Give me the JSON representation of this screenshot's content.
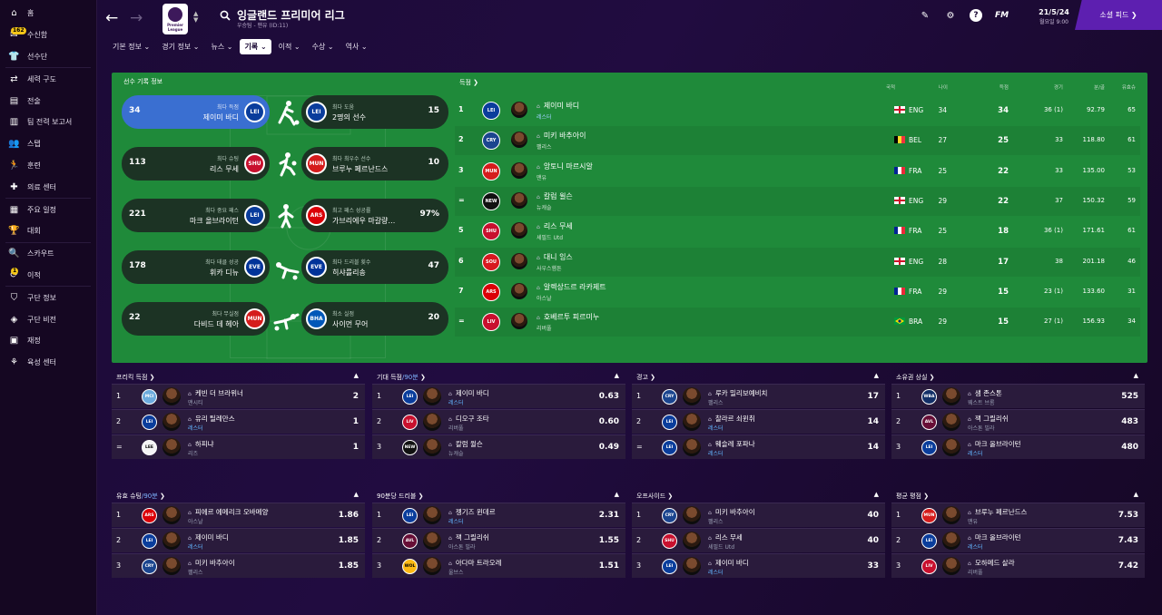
{
  "sidebar": {
    "items": [
      {
        "label": "홈",
        "icon": "home-icon",
        "glyph": "⌂"
      },
      {
        "label": "수신함",
        "icon": "inbox-icon",
        "glyph": "✉",
        "badge": "162"
      },
      {
        "label": "선수단",
        "icon": "shirt-icon",
        "glyph": "👕"
      },
      {
        "label": "세력 구도",
        "icon": "dynamics-icon",
        "glyph": "⇄"
      },
      {
        "label": "전술",
        "icon": "tactics-icon",
        "glyph": "▤"
      },
      {
        "label": "팀 전력 보고서",
        "icon": "report-icon",
        "glyph": "▥"
      },
      {
        "label": "스탭",
        "icon": "staff-icon",
        "glyph": "👥"
      },
      {
        "label": "훈련",
        "icon": "training-icon",
        "glyph": "🏃"
      },
      {
        "label": "의료 센터",
        "icon": "medical-icon",
        "glyph": "✚"
      },
      {
        "label": "주요 일정",
        "icon": "calendar-icon",
        "glyph": "▦"
      },
      {
        "label": "대회",
        "icon": "trophy-icon",
        "glyph": "🏆"
      },
      {
        "label": "스카우트",
        "icon": "scout-icon",
        "glyph": "🔍"
      },
      {
        "label": "이적",
        "icon": "transfer-icon",
        "glyph": "⟳",
        "badge": "1"
      },
      {
        "label": "구단 정보",
        "icon": "club-info-icon",
        "glyph": "⛉"
      },
      {
        "label": "구단 비전",
        "icon": "vision-icon",
        "glyph": "◈"
      },
      {
        "label": "재정",
        "icon": "finance-icon",
        "glyph": "▣"
      },
      {
        "label": "육성 센터",
        "icon": "development-icon",
        "glyph": "⚘"
      }
    ]
  },
  "header": {
    "title": "잉글랜드 프리미어 리그",
    "subtitle": "우승팀 - 맨유 (ID:11)",
    "logo_text": "Premier League",
    "date": "21/5/24",
    "time": "월요일 9:00",
    "fm": "FM",
    "social_label": "소셜 피드 ❯",
    "tabs": [
      {
        "label": "기본 정보 ⌄",
        "active": false
      },
      {
        "label": "경기 정보 ⌄",
        "active": false
      },
      {
        "label": "뉴스 ⌄",
        "active": false
      },
      {
        "label": "기록 ⌄",
        "active": true
      },
      {
        "label": "이적 ⌄",
        "active": false
      },
      {
        "label": "수상 ⌄",
        "active": false
      },
      {
        "label": "역사 ⌄",
        "active": false
      }
    ]
  },
  "records": {
    "title": "선수 기록 정보",
    "rows": [
      {
        "left": {
          "value": "34",
          "label": "최다 득점",
          "name": "제이미 바디",
          "club": "LEI",
          "color": "#0a3d9c"
        },
        "right": {
          "value": "15",
          "label": "최다 도움",
          "name": "2명의 선수",
          "club": "LEI",
          "color": "#0a3d9c"
        }
      },
      {
        "left": {
          "value": "113",
          "label": "최다 슈팅",
          "name": "리스 무세",
          "club": "SHU",
          "color": "#c8102e"
        },
        "right": {
          "value": "10",
          "label": "최다 최우수 선수",
          "name": "브루누 페르난드스",
          "club": "MUN",
          "color": "#d51c1c"
        }
      },
      {
        "left": {
          "value": "221",
          "label": "최다 중요 패스",
          "name": "마크 올브라이턴",
          "club": "LEI",
          "color": "#0a3d9c"
        },
        "right": {
          "value": "97%",
          "label": "최고 패스 성공률",
          "name": "가브리에우 마갈량…",
          "club": "ARS",
          "color": "#db0007"
        }
      },
      {
        "left": {
          "value": "178",
          "label": "최다 태클 성공",
          "name": "휘카 디뉴",
          "club": "EVE",
          "color": "#003399"
        },
        "right": {
          "value": "47",
          "label": "최다 드리블 횟수",
          "name": "히샤를리송",
          "club": "EVE",
          "color": "#003399"
        }
      },
      {
        "left": {
          "value": "22",
          "label": "최다 무실점",
          "name": "다비드 데 헤아",
          "club": "MUN",
          "color": "#d51c1c"
        },
        "right": {
          "value": "20",
          "label": "최소 실점",
          "name": "사이먼 무어",
          "club": "BHA",
          "color": "#0057b8"
        }
      }
    ]
  },
  "scorers": {
    "title": "득점 ❯",
    "headers": {
      "nat": "국적",
      "age": "나이",
      "goals": "득점",
      "apps": "경기",
      "mpg": "분/골",
      "eff": "유효슈"
    },
    "rows": [
      {
        "rank": "1",
        "name": "제이미 바디",
        "club": "레스터",
        "club_hl": true,
        "crest": "LEI",
        "crest_color": "#0a3d9c",
        "nat": "ENG",
        "flag": "eng",
        "age": "34",
        "goals": "34",
        "apps": "36 (1)",
        "mpg": "92.79",
        "eff": "65"
      },
      {
        "rank": "2",
        "name": "미키 바추아이",
        "club": "팰리스",
        "club_hl": false,
        "crest": "CRY",
        "crest_color": "#1b458f",
        "nat": "BEL",
        "flag": "bel",
        "age": "27",
        "goals": "25",
        "apps": "33",
        "mpg": "118.80",
        "eff": "61"
      },
      {
        "rank": "3",
        "name": "앙토니 마르시알",
        "club": "맨유",
        "club_hl": false,
        "crest": "MUN",
        "crest_color": "#d51c1c",
        "nat": "FRA",
        "flag": "fra",
        "age": "25",
        "goals": "22",
        "apps": "33",
        "mpg": "135.00",
        "eff": "53"
      },
      {
        "rank": "=",
        "name": "칼럼 윌슨",
        "club": "뉴캐슬",
        "club_hl": false,
        "crest": "NEW",
        "crest_color": "#111111",
        "nat": "ENG",
        "flag": "eng",
        "age": "29",
        "goals": "22",
        "apps": "37",
        "mpg": "150.32",
        "eff": "59"
      },
      {
        "rank": "5",
        "name": "리스 무세",
        "club": "셰필드 Utd",
        "club_hl": false,
        "crest": "SHU",
        "crest_color": "#c8102e",
        "nat": "FRA",
        "flag": "fra",
        "age": "25",
        "goals": "18",
        "apps": "36 (1)",
        "mpg": "171.61",
        "eff": "61"
      },
      {
        "rank": "6",
        "name": "대니 잉스",
        "club": "사우스햄튼",
        "club_hl": false,
        "crest": "SOU",
        "crest_color": "#d71920",
        "nat": "ENG",
        "flag": "eng",
        "age": "28",
        "goals": "17",
        "apps": "38",
        "mpg": "201.18",
        "eff": "46"
      },
      {
        "rank": "7",
        "name": "알렉상드르 라카제트",
        "club": "아스날",
        "club_hl": false,
        "crest": "ARS",
        "crest_color": "#db0007",
        "nat": "FRA",
        "flag": "fra",
        "age": "29",
        "goals": "15",
        "apps": "23 (1)",
        "mpg": "133.60",
        "eff": "31"
      },
      {
        "rank": "=",
        "name": "호베르투 피르미누",
        "club": "리버풀",
        "club_hl": false,
        "crest": "LIV",
        "crest_color": "#c8102e",
        "nat": "BRA",
        "flag": "bra",
        "age": "29",
        "goals": "15",
        "apps": "27 (1)",
        "mpg": "156.93",
        "eff": "34"
      }
    ]
  },
  "mini_tables": [
    {
      "title": "프리킥 득점",
      "suffix": "",
      "rows": [
        {
          "rank": "1",
          "name": "케빈 더 브라위너",
          "club": "맨시티",
          "club_hl": false,
          "crest": "MCI",
          "crest_color": "#6cabdd",
          "value": "2"
        },
        {
          "rank": "2",
          "name": "유리 틸레만스",
          "club": "레스터",
          "club_hl": true,
          "crest": "LEI",
          "crest_color": "#0a3d9c",
          "value": "1"
        },
        {
          "rank": "=",
          "name": "하피냐",
          "club": "리즈",
          "club_hl": false,
          "crest": "LEE",
          "crest_color": "#f5f5f5",
          "value": "1"
        }
      ]
    },
    {
      "title": "기대 득점",
      "suffix": "/90분",
      "rows": [
        {
          "rank": "1",
          "name": "제이미 바디",
          "club": "레스터",
          "club_hl": true,
          "crest": "LEI",
          "crest_color": "#0a3d9c",
          "value": "0.63"
        },
        {
          "rank": "2",
          "name": "디오구 조타",
          "club": "리버풀",
          "club_hl": false,
          "crest": "LIV",
          "crest_color": "#c8102e",
          "value": "0.60"
        },
        {
          "rank": "3",
          "name": "칼럼 윌슨",
          "club": "뉴캐슬",
          "club_hl": false,
          "crest": "NEW",
          "crest_color": "#111111",
          "value": "0.49"
        }
      ]
    },
    {
      "title": "경고",
      "suffix": "",
      "rows": [
        {
          "rank": "1",
          "name": "루카 밀리보예비치",
          "club": "팰리스",
          "club_hl": false,
          "crest": "CRY",
          "crest_color": "#1b458f",
          "value": "17"
        },
        {
          "rank": "2",
          "name": "찰라르 쇠윈취",
          "club": "레스터",
          "club_hl": true,
          "crest": "LEI",
          "crest_color": "#0a3d9c",
          "value": "14"
        },
        {
          "rank": "=",
          "name": "웨슬레 포파나",
          "club": "레스터",
          "club_hl": true,
          "crest": "LEI",
          "crest_color": "#0a3d9c",
          "value": "14"
        }
      ]
    },
    {
      "title": "소유권 상실",
      "suffix": "",
      "rows": [
        {
          "rank": "1",
          "name": "샘 존스톤",
          "club": "웨스트 브롬",
          "club_hl": false,
          "crest": "WBA",
          "crest_color": "#122f67",
          "value": "525"
        },
        {
          "rank": "2",
          "name": "잭 그릴리쉬",
          "club": "아스톤 빌라",
          "club_hl": false,
          "crest": "AVL",
          "crest_color": "#670e36",
          "value": "483"
        },
        {
          "rank": "3",
          "name": "마크 올브라이턴",
          "club": "레스터",
          "club_hl": true,
          "crest": "LEI",
          "crest_color": "#0a3d9c",
          "value": "480"
        }
      ]
    },
    {
      "title": "유효 슈팅",
      "suffix": "/90분",
      "rows": [
        {
          "rank": "1",
          "name": "피에르 에메리크 오바메양",
          "club": "아스날",
          "club_hl": false,
          "crest": "ARS",
          "crest_color": "#db0007",
          "value": "1.86"
        },
        {
          "rank": "2",
          "name": "제이미 바디",
          "club": "레스터",
          "club_hl": true,
          "crest": "LEI",
          "crest_color": "#0a3d9c",
          "value": "1.85"
        },
        {
          "rank": "3",
          "name": "미키 바추아이",
          "club": "팰리스",
          "club_hl": false,
          "crest": "CRY",
          "crest_color": "#1b458f",
          "value": "1.85"
        }
      ]
    },
    {
      "title": "90분당 드리블",
      "suffix": "",
      "rows": [
        {
          "rank": "1",
          "name": "젱기즈 윈데르",
          "club": "레스터",
          "club_hl": true,
          "crest": "LEI",
          "crest_color": "#0a3d9c",
          "value": "2.31"
        },
        {
          "rank": "2",
          "name": "잭 그릴리쉬",
          "club": "아스톤 빌라",
          "club_hl": false,
          "crest": "AVL",
          "crest_color": "#670e36",
          "value": "1.55"
        },
        {
          "rank": "3",
          "name": "아다마 트라오레",
          "club": "울브스",
          "club_hl": false,
          "crest": "WOL",
          "crest_color": "#fdb913",
          "value": "1.51"
        }
      ]
    },
    {
      "title": "오프사이드",
      "suffix": "",
      "rows": [
        {
          "rank": "1",
          "name": "미키 바추아이",
          "club": "팰리스",
          "club_hl": false,
          "crest": "CRY",
          "crest_color": "#1b458f",
          "value": "40"
        },
        {
          "rank": "2",
          "name": "리스 무세",
          "club": "셰필드 Utd",
          "club_hl": false,
          "crest": "SHU",
          "crest_color": "#c8102e",
          "value": "40"
        },
        {
          "rank": "3",
          "name": "제이미 바디",
          "club": "레스터",
          "club_hl": true,
          "crest": "LEI",
          "crest_color": "#0a3d9c",
          "value": "33"
        }
      ]
    },
    {
      "title": "평균 평점",
      "suffix": "",
      "rows": [
        {
          "rank": "1",
          "name": "브루누 페르난드스",
          "club": "맨유",
          "club_hl": false,
          "crest": "MUN",
          "crest_color": "#d51c1c",
          "value": "7.53"
        },
        {
          "rank": "2",
          "name": "마크 올브라이턴",
          "club": "레스터",
          "club_hl": true,
          "crest": "LEI",
          "crest_color": "#0a3d9c",
          "value": "7.43"
        },
        {
          "rank": "3",
          "name": "모하메드 살라",
          "club": "리버풀",
          "club_hl": false,
          "crest": "LIV",
          "crest_color": "#c8102e",
          "value": "7.42"
        }
      ]
    }
  ]
}
